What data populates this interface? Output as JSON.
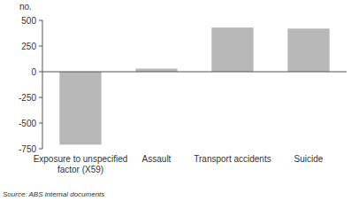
{
  "chart_data": {
    "type": "bar",
    "y_label": "no.",
    "categories": [
      "Exposure to unspecified factor (X59)",
      "Assault",
      "Transport accidents",
      "Suicide"
    ],
    "values": [
      -710,
      30,
      430,
      420
    ],
    "color": "#b8b8b8",
    "ylim": [
      -750,
      500
    ],
    "yticks": [
      -750,
      -500,
      -250,
      0,
      250,
      500
    ],
    "grid": true,
    "source": "Source: ABS internal documents"
  }
}
